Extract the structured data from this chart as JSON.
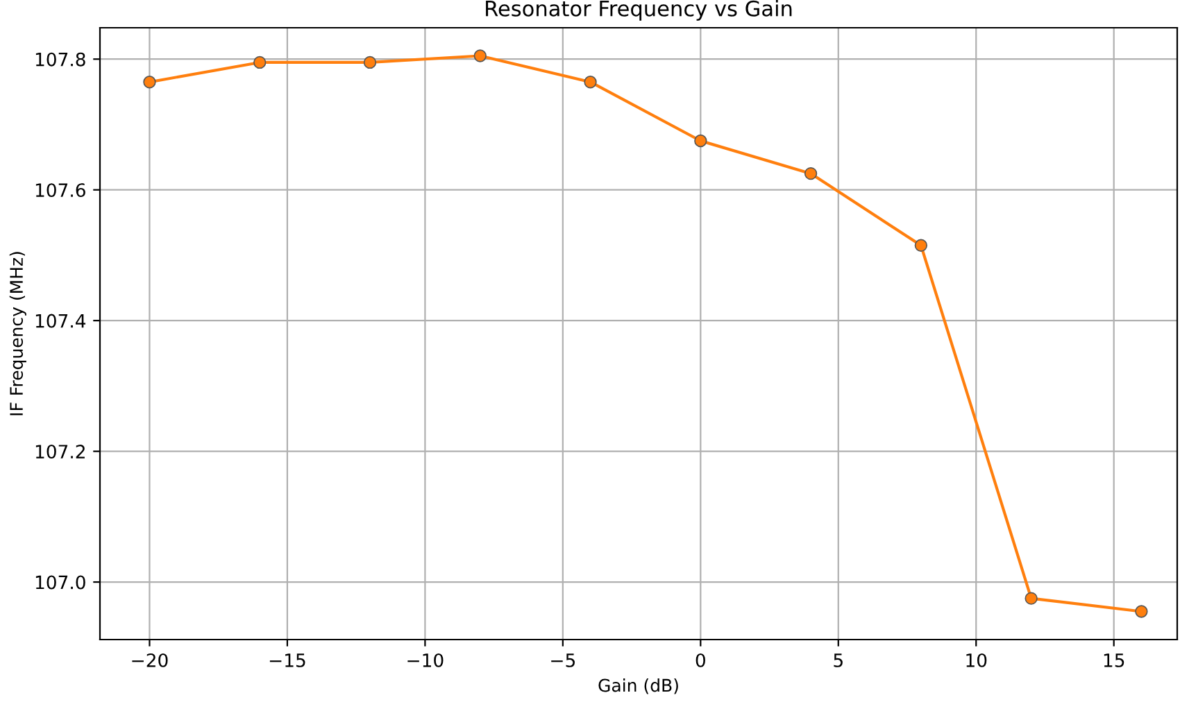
{
  "chart_data": {
    "type": "line",
    "title": "Resonator Frequency vs Gain",
    "xlabel": "Gain (dB)",
    "ylabel": "IF Frequency (MHz)",
    "x": [
      -20,
      -16,
      -12,
      -8,
      -4,
      0,
      4,
      8,
      12,
      16
    ],
    "series": [
      {
        "color": "#ff7f0e",
        "values": [
          107.765,
          107.795,
          107.795,
          107.805,
          107.765,
          107.675,
          107.625,
          107.515,
          106.975,
          106.955
        ]
      }
    ],
    "marker": "circle",
    "line_style": "solid",
    "grid": true,
    "xlim": [
      -21.8,
      17.3
    ],
    "ylim": [
      106.912,
      107.848
    ],
    "xticks": [
      {
        "value": -20,
        "label": "−20"
      },
      {
        "value": -15,
        "label": "−15"
      },
      {
        "value": -10,
        "label": "−10"
      },
      {
        "value": -5,
        "label": "−5"
      },
      0,
      5,
      10,
      15
    ],
    "yticks": [
      {
        "value": 107.0,
        "label": "107.0"
      },
      107.2,
      107.4,
      107.6,
      107.8
    ]
  }
}
